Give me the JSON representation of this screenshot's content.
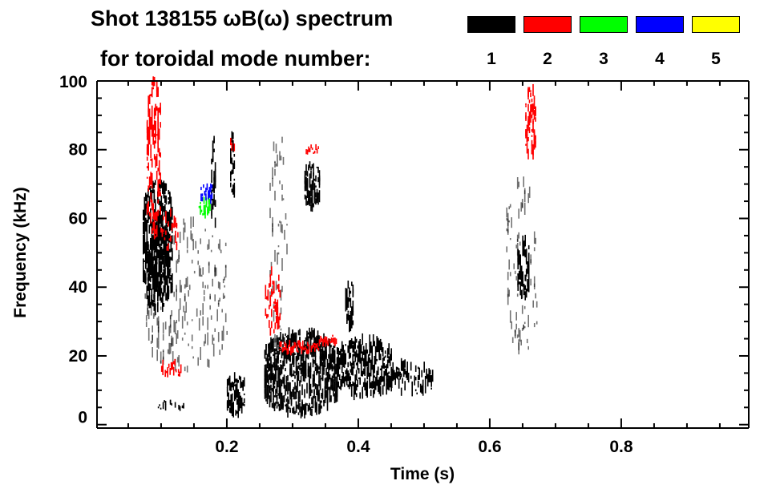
{
  "chart_data": {
    "type": "heatmap",
    "title": "Shot 138155 ωB(ω) spectrum",
    "legend_title": "for toroidal mode number:",
    "legend_placement": "top-right",
    "legend": [
      {
        "label": "1",
        "color": "#000000"
      },
      {
        "label": "2",
        "color": "#ff0000"
      },
      {
        "label": "3",
        "color": "#00ff00"
      },
      {
        "label": "4",
        "color": "#0000ff"
      },
      {
        "label": "5",
        "color": "#ffff00"
      }
    ],
    "xlabel": "Time (s)",
    "ylabel": "Frequency (kHz)",
    "xlim": [
      0.0025,
      0.994
    ],
    "ylim": [
      -1,
      100
    ],
    "xticks": [
      "0.2",
      "0.4",
      "0.6",
      "0.8"
    ],
    "xtick_values": [
      0.2,
      0.4,
      0.6,
      0.8
    ],
    "yticks": [
      "0",
      "20",
      "40",
      "60",
      "80",
      "100"
    ],
    "ytick_values": [
      0,
      20,
      40,
      60,
      80,
      100
    ],
    "features": [
      {
        "mode": 1,
        "t": [
          0.072,
          0.117
        ],
        "f": [
          33,
          71
        ],
        "density": 0.85
      },
      {
        "mode": 1,
        "t": [
          0.085,
          0.112
        ],
        "f": [
          38,
          58
        ],
        "density": 0.95
      },
      {
        "mode": 1,
        "t": [
          0.075,
          0.2
        ],
        "f": [
          15,
          60
        ],
        "density": 0.12
      },
      {
        "mode": 1,
        "t": [
          0.095,
          0.135
        ],
        "f": [
          4,
          7
        ],
        "density": 0.5
      },
      {
        "mode": 1,
        "t": [
          0.2,
          0.227
        ],
        "f": [
          3,
          14
        ],
        "density": 0.85
      },
      {
        "mode": 1,
        "t": [
          0.176,
          0.183
        ],
        "f": [
          56,
          83
        ],
        "density": 0.5
      },
      {
        "mode": 1,
        "t": [
          0.205,
          0.211
        ],
        "f": [
          65,
          86
        ],
        "density": 0.6
      },
      {
        "mode": 1,
        "t": [
          0.318,
          0.34
        ],
        "f": [
          63,
          76
        ],
        "density": 0.9
      },
      {
        "mode": 1,
        "t": [
          0.257,
          0.367
        ],
        "f": [
          3,
          27
        ],
        "density": 0.8
      },
      {
        "mode": 1,
        "t": [
          0.367,
          0.45
        ],
        "f": [
          8,
          25
        ],
        "density": 0.75
      },
      {
        "mode": 1,
        "t": [
          0.45,
          0.513
        ],
        "f": [
          9,
          18
        ],
        "density": 0.45
      },
      {
        "mode": 1,
        "t": [
          0.265,
          0.292
        ],
        "f": [
          21,
          86
        ],
        "density": 0.1
      },
      {
        "mode": 1,
        "t": [
          0.38,
          0.392
        ],
        "f": [
          28,
          42
        ],
        "density": 0.6
      },
      {
        "mode": 1,
        "t": [
          0.642,
          0.66
        ],
        "f": [
          37,
          54
        ],
        "density": 0.9
      },
      {
        "mode": 1,
        "t": [
          0.625,
          0.672
        ],
        "f": [
          21,
          72
        ],
        "density": 0.12
      },
      {
        "mode": 2,
        "t": [
          0.078,
          0.099
        ],
        "f": [
          54,
          100
        ],
        "density": 0.5
      },
      {
        "mode": 2,
        "t": [
          0.099,
          0.13
        ],
        "f": [
          50,
          62
        ],
        "density": 0.25
      },
      {
        "mode": 2,
        "t": [
          0.32,
          0.34
        ],
        "f": [
          79,
          81
        ],
        "density": 0.9
      },
      {
        "mode": 2,
        "t": [
          0.258,
          0.28
        ],
        "f": [
          26,
          45
        ],
        "density": 0.3
      },
      {
        "mode": 2,
        "t": [
          0.28,
          0.34
        ],
        "f": [
          21,
          24
        ],
        "density": 0.8
      },
      {
        "mode": 2,
        "t": [
          0.34,
          0.367
        ],
        "f": [
          23,
          26
        ],
        "density": 0.6
      },
      {
        "mode": 2,
        "t": [
          0.654,
          0.67
        ],
        "f": [
          77,
          98
        ],
        "density": 0.75
      },
      {
        "mode": 2,
        "t": [
          0.1,
          0.13
        ],
        "f": [
          14,
          19
        ],
        "density": 0.3
      },
      {
        "mode": 2,
        "t": [
          0.205,
          0.212
        ],
        "f": [
          80,
          84
        ],
        "density": 0.6
      },
      {
        "mode": 3,
        "t": [
          0.157,
          0.175
        ],
        "f": [
          61,
          66
        ],
        "density": 0.7
      },
      {
        "mode": 4,
        "t": [
          0.16,
          0.178
        ],
        "f": [
          65,
          70
        ],
        "density": 0.6
      }
    ]
  }
}
